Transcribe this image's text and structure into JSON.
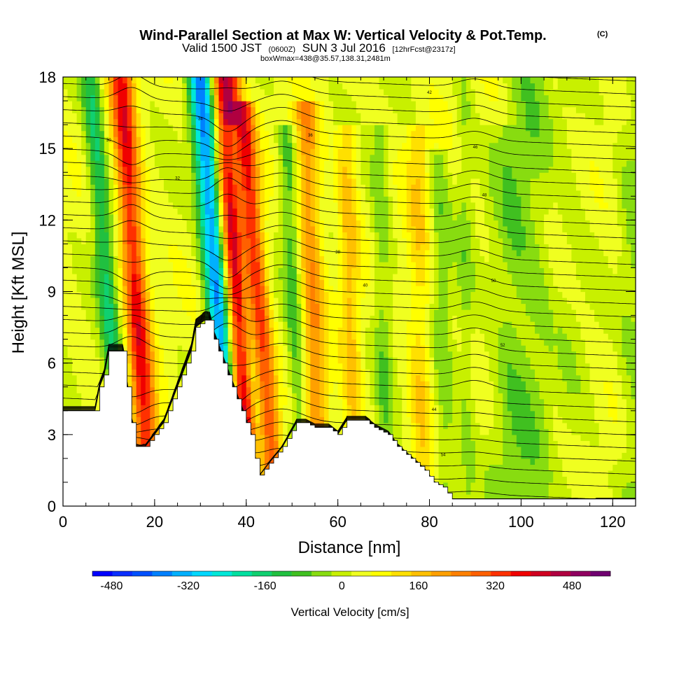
{
  "chart_data": {
    "type": "heatmap",
    "title": {
      "main": "Wind-Parallel Section at Max W: Vertical Velocity & Pot.Temp.",
      "copyright": "(C)",
      "line2_start": "Valid 1500 JST",
      "line2_zulu": "(0600Z)",
      "line2_mid": "SUN 3 Jul 2016",
      "line2_fcst": "[12hrFcst@2317z]",
      "line3": "boxWmax=438@35.57,138.31,2481m"
    },
    "xlabel": "Distance [nm]",
    "ylabel": "Height [Kft MSL]",
    "xlim": [
      0,
      125
    ],
    "ylim": [
      0,
      18
    ],
    "x_ticks": [
      0,
      20,
      40,
      60,
      80,
      100,
      120
    ],
    "y_ticks": [
      0,
      3,
      6,
      9,
      12,
      15,
      18
    ],
    "x_tick_labels": [
      "0",
      "20",
      "40",
      "60",
      "80",
      "100",
      "120"
    ],
    "y_tick_labels": [
      "0",
      "3",
      "6",
      "9",
      "12",
      "15",
      "18"
    ],
    "colorbar": {
      "label": "Vertical Velocity [cm/s]",
      "min": -520,
      "max": 560,
      "tick_values": [
        -480,
        -320,
        -160,
        0,
        160,
        320,
        480
      ],
      "tick_labels": [
        "-480",
        "-320",
        "-160",
        "0",
        "160",
        "320",
        "480"
      ],
      "colors": [
        "#0000ff",
        "#0a2eff",
        "#0050ff",
        "#0080ff",
        "#00b0ff",
        "#00d8ff",
        "#00e8d8",
        "#00e0a0",
        "#10d070",
        "#20c040",
        "#40c020",
        "#88dc10",
        "#c8f000",
        "#f0ff20",
        "#ffff00",
        "#ffe000",
        "#ffc000",
        "#ffa000",
        "#ff8000",
        "#ff6000",
        "#ff3000",
        "#f00000",
        "#d00020",
        "#b00040",
        "#900060",
        "#700070"
      ]
    },
    "terrain_kft": [
      [
        0,
        4.0
      ],
      [
        3,
        4.0
      ],
      [
        7,
        4.0
      ],
      [
        8,
        5.0
      ],
      [
        9,
        5.5
      ],
      [
        10,
        6.5
      ],
      [
        13,
        6.5
      ],
      [
        14,
        5.0
      ],
      [
        15,
        3.5
      ],
      [
        16,
        2.5
      ],
      [
        18,
        2.5
      ],
      [
        20,
        3.0
      ],
      [
        22,
        3.5
      ],
      [
        24,
        4.5
      ],
      [
        26,
        5.5
      ],
      [
        28,
        6.5
      ],
      [
        29,
        7.5
      ],
      [
        31,
        7.8
      ],
      [
        32,
        7.8
      ],
      [
        33,
        7.0
      ],
      [
        35,
        6.0
      ],
      [
        37,
        5.0
      ],
      [
        39,
        4.0
      ],
      [
        41,
        3.0
      ],
      [
        42,
        2.0
      ],
      [
        43,
        1.3
      ],
      [
        45,
        1.8
      ],
      [
        48,
        2.5
      ],
      [
        51,
        3.5
      ],
      [
        53,
        3.5
      ],
      [
        55,
        3.3
      ],
      [
        58,
        3.3
      ],
      [
        60,
        3.0
      ],
      [
        62,
        3.6
      ],
      [
        66,
        3.6
      ],
      [
        68,
        3.3
      ],
      [
        71,
        3.0
      ],
      [
        73,
        2.5
      ],
      [
        76,
        2.0
      ],
      [
        79,
        1.5
      ],
      [
        81,
        1.0
      ],
      [
        83,
        0.8
      ],
      [
        85,
        0.3
      ],
      [
        95,
        0.3
      ],
      [
        110,
        0.3
      ],
      [
        125,
        0.3
      ]
    ],
    "velocity_bands": [
      {
        "x_base": 17,
        "slope_nm_per_kft": 0.36,
        "width_nm": 2.6,
        "value": 330,
        "z_top": 18
      },
      {
        "x_base": 11,
        "slope_nm_per_kft": 0.42,
        "width_nm": 2.2,
        "value": -180,
        "z_top": 18
      },
      {
        "x_base": 39,
        "slope_nm_per_kft": 0.3,
        "width_nm": 3.0,
        "value": 438,
        "z_top": 18
      },
      {
        "x_base": 35,
        "slope_nm_per_kft": 0.42,
        "width_nm": 2.6,
        "value": -420,
        "z_top": 18
      },
      {
        "x_base": 44,
        "slope_nm_per_kft": 0.42,
        "width_nm": 2.2,
        "value": 260,
        "z_top": 17
      },
      {
        "x_base": 41,
        "slope_nm_per_kft": 0.42,
        "width_nm": 1.8,
        "value": -160,
        "z_top": 16
      },
      {
        "x_base": 55,
        "slope_nm_per_kft": 0.2,
        "width_nm": 2.6,
        "value": 190,
        "z_top": 17
      },
      {
        "x_base": 51,
        "slope_nm_per_kft": 0.22,
        "width_nm": 2.0,
        "value": -120,
        "z_top": 16
      },
      {
        "x_base": 63,
        "slope_nm_per_kft": 0.12,
        "width_nm": 2.2,
        "value": 120,
        "z_top": 16
      },
      {
        "x_base": 70,
        "slope_nm_per_kft": 0.1,
        "width_nm": 2.0,
        "value": -80,
        "z_top": 16
      },
      {
        "x_base": 78,
        "slope_nm_per_kft": 0.05,
        "width_nm": 2.6,
        "value": 100,
        "z_top": 16
      },
      {
        "x_base": 83,
        "slope_nm_per_kft": 0.1,
        "width_nm": 2.4,
        "value": -80,
        "z_top": 15
      },
      {
        "x_base": 88,
        "slope_nm_per_kft": 0.04,
        "width_nm": 1.8,
        "value": -60,
        "z_top": 18
      },
      {
        "x_base": 96,
        "slope_nm_per_kft": 0.0,
        "width_nm": 4.0,
        "value": -50,
        "z_top": 16
      },
      {
        "x_base": 110,
        "slope_nm_per_kft": 0.0,
        "width_nm": 5.0,
        "value": -30,
        "z_top": 18
      }
    ],
    "theta_contours": {
      "spacing_kft": 0.55,
      "levels": 34,
      "labels": [
        "30",
        "32",
        "34",
        "36",
        "38",
        "40",
        "42",
        "44",
        "46",
        "48",
        "50",
        "52",
        "54"
      ]
    }
  }
}
